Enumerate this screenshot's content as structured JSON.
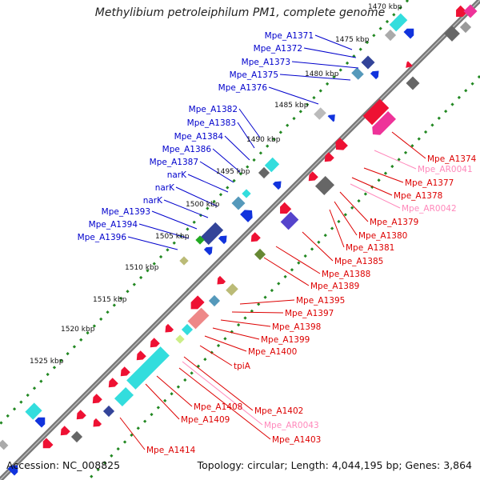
{
  "title": "Methylibium petroleiphilum PM1, complete genome",
  "footer": {
    "accession": "Accession: NC_008825",
    "summary": "Topology: circular; Length: 4,044,195 bp; Genes: 3,864"
  },
  "colors": {
    "forward_label": "#0000cc",
    "reverse_label": "#dd0000",
    "rna_label": "#ff88bb",
    "backbone": "#777777",
    "tick": "#228822"
  },
  "kbp_ticks": [
    "1470 kbp",
    "1475 kbp",
    "1480 kbp",
    "1485 kbp",
    "1490 kbp",
    "1495 kbp",
    "1500 kbp",
    "1505 kbp",
    "1510 kbp",
    "1515 kbp",
    "1520 kbp",
    "1525 kbp"
  ],
  "left_labels": [
    "Mpe_A1371",
    "Mpe_A1372",
    "Mpe_A1373",
    "Mpe_A1375",
    "Mpe_A1376",
    "Mpe_A1382",
    "Mpe_A1383",
    "Mpe_A1384",
    "Mpe_A1386",
    "Mpe_A1387",
    "narK",
    "narK",
    "narK",
    "Mpe_A1393",
    "Mpe_A1394",
    "Mpe_A1396"
  ],
  "right_labels": [
    {
      "text": "Mpe_A1374",
      "kind": "reverse"
    },
    {
      "text": "Mpe_AR0041",
      "kind": "rna"
    },
    {
      "text": "Mpe_A1377",
      "kind": "reverse"
    },
    {
      "text": "Mpe_A1378",
      "kind": "reverse"
    },
    {
      "text": "Mpe_AR0042",
      "kind": "rna"
    },
    {
      "text": "Mpe_A1379",
      "kind": "reverse"
    },
    {
      "text": "Mpe_A1380",
      "kind": "reverse"
    },
    {
      "text": "Mpe_A1381",
      "kind": "reverse"
    },
    {
      "text": "Mpe_A1385",
      "kind": "reverse"
    },
    {
      "text": "Mpe_A1388",
      "kind": "reverse"
    },
    {
      "text": "Mpe_A1389",
      "kind": "reverse"
    }
  ],
  "bottom_labels": [
    {
      "text": "Mpe_A1395",
      "kind": "reverse"
    },
    {
      "text": "Mpe_A1397",
      "kind": "reverse"
    },
    {
      "text": "Mpe_A1398",
      "kind": "reverse"
    },
    {
      "text": "Mpe_A1399",
      "kind": "reverse"
    },
    {
      "text": "Mpe_A1400",
      "kind": "reverse"
    },
    {
      "text": "tpiA",
      "kind": "reverse"
    },
    {
      "text": "Mpe_A1402",
      "kind": "reverse"
    },
    {
      "text": "Mpe_AR0043",
      "kind": "rna"
    },
    {
      "text": "Mpe_A1403",
      "kind": "reverse"
    },
    {
      "text": "Mpe_A1408",
      "kind": "reverse"
    },
    {
      "text": "Mpe_A1409",
      "kind": "reverse"
    },
    {
      "text": "Mpe_A1414",
      "kind": "reverse"
    }
  ]
}
